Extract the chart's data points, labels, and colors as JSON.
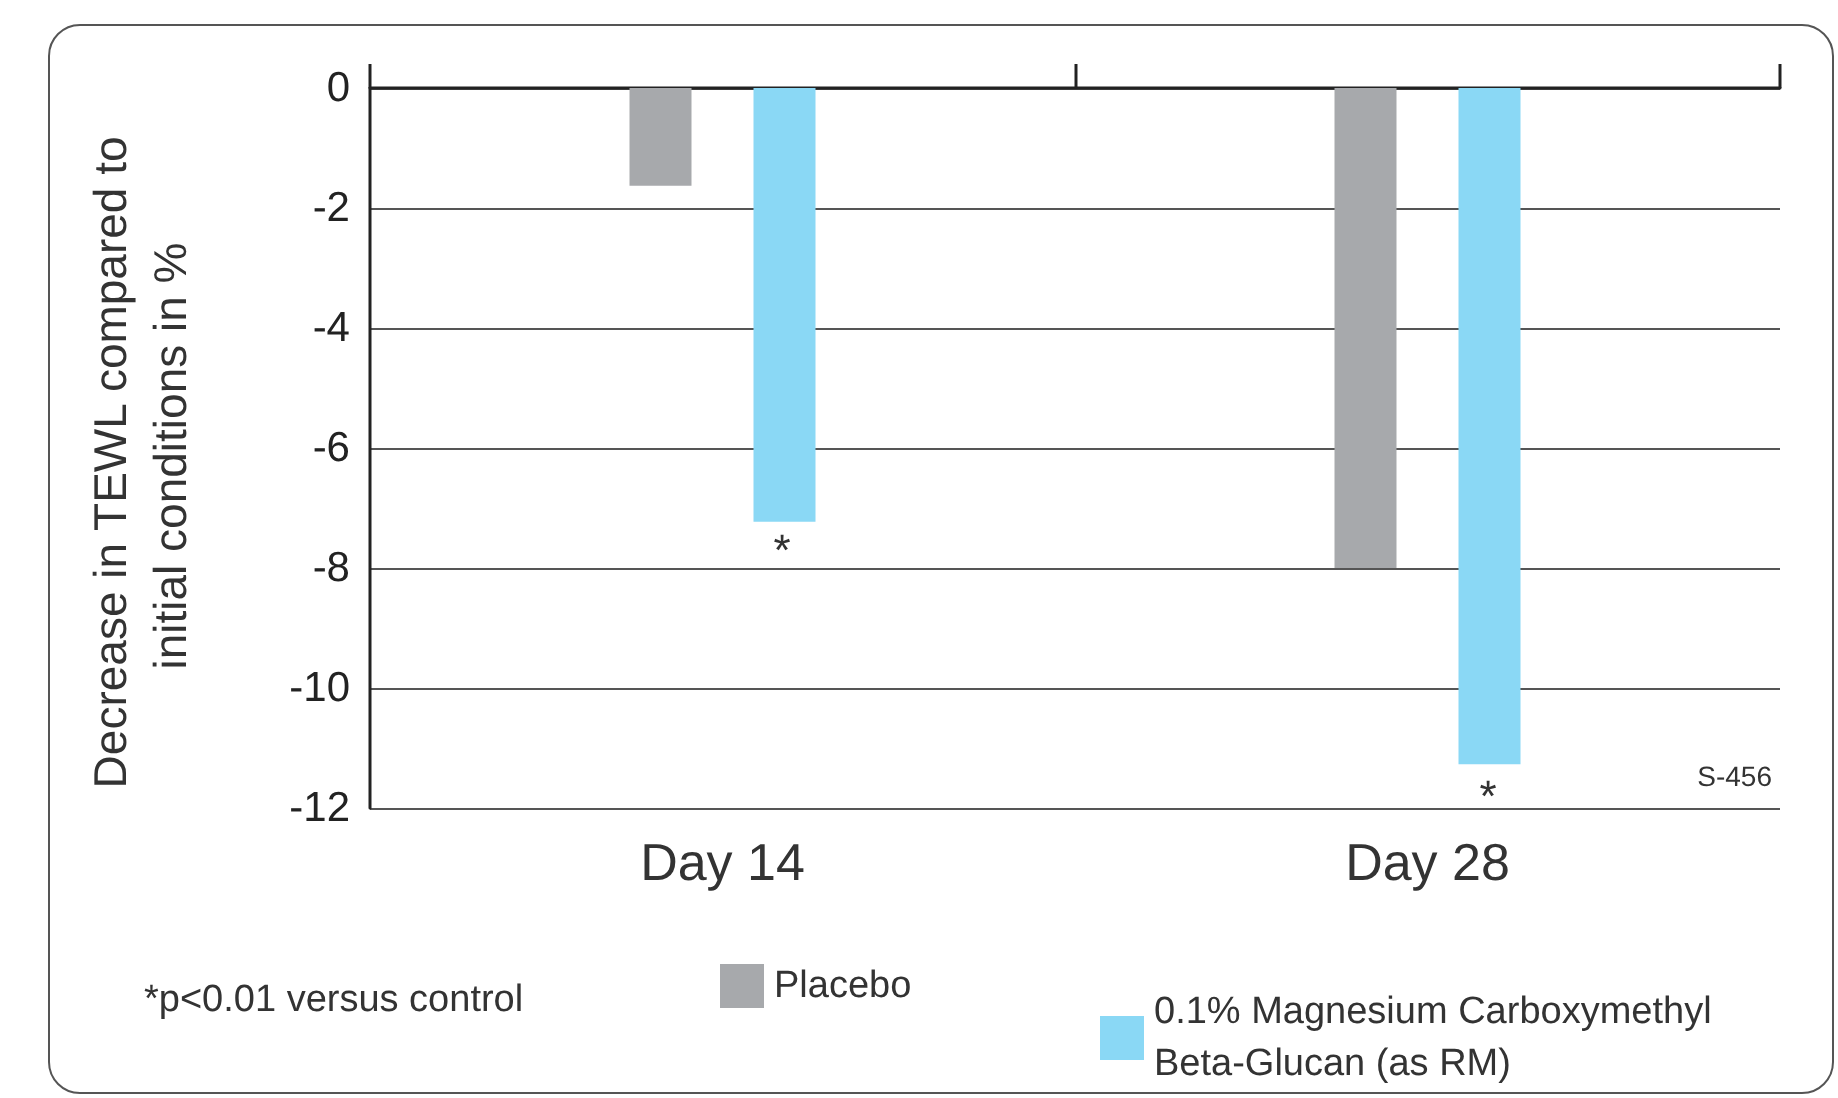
{
  "chart_data": {
    "type": "bar",
    "ylabel": "Decrease in TEWL compared to initial conditions in %",
    "categories": [
      "Day 14",
      "Day 28"
    ],
    "series": [
      {
        "name": "Placebo",
        "color": "#a7a9ac",
        "values": [
          -1.63,
          -8.0
        ]
      },
      {
        "name": "0.1% Magnesium Carboxymethyl Beta-Glucan (as RM)",
        "color": "#8ad8f5",
        "values": [
          -7.23,
          -11.27
        ]
      }
    ],
    "ylim": [
      -12,
      0
    ],
    "yticks": [
      0,
      -2,
      -4,
      -6,
      -8,
      -10,
      -12
    ],
    "grid": "y",
    "legend": "bottom",
    "annotations": [
      "*",
      "*",
      "S-456",
      "*p<0.01 versus control"
    ]
  }
}
